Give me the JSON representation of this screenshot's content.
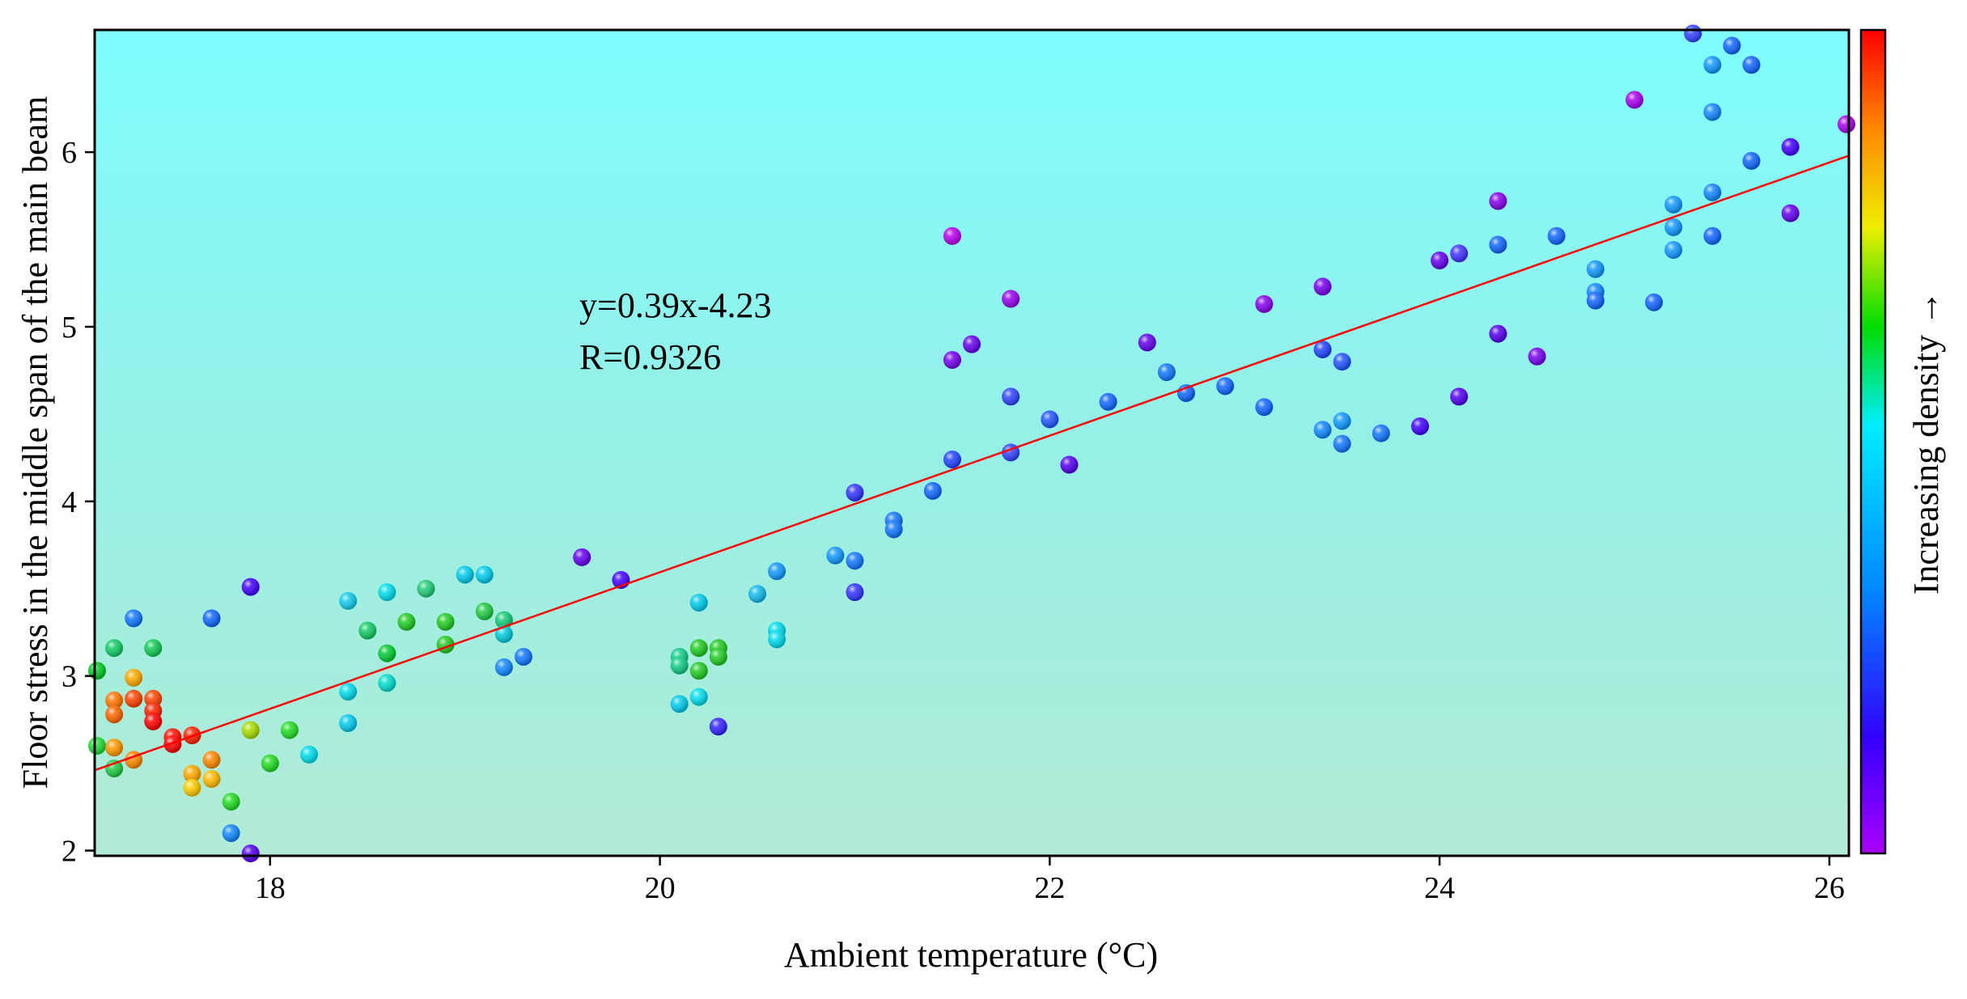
{
  "chart_data": {
    "type": "scatter",
    "title": "",
    "xlabel": "Ambient temperature (°C)",
    "ylabel": "Floor stress in the middle span of the main beam",
    "xlim": [
      17.1,
      26.1
    ],
    "ylim": [
      1.97,
      6.7
    ],
    "xticks": [
      18,
      20,
      22,
      24,
      26
    ],
    "yticks": [
      2,
      3,
      4,
      5,
      6
    ],
    "grid": false,
    "colorbar_label": "Increasing density →",
    "colorbar_colors": [
      "#aa00ff",
      "#3300ff",
      "#0088ff",
      "#00eeff",
      "#00dd00",
      "#eeee00",
      "#ff8800",
      "#ff0000"
    ],
    "fit_line": {
      "slope": 0.39,
      "intercept": -4.23,
      "color": "#ff0000",
      "x_range": [
        17.1,
        26.1
      ],
      "y_range": [
        2.46,
        5.98
      ]
    },
    "annotations": [
      "y=0.39x-4.23",
      "R=0.9326"
    ],
    "points": [
      {
        "x": 17.1,
        "y": 3.03,
        "color": "#00cc22"
      },
      {
        "x": 17.1,
        "y": 2.6,
        "color": "#22dd33"
      },
      {
        "x": 17.2,
        "y": 3.16,
        "color": "#11cc66"
      },
      {
        "x": 17.2,
        "y": 2.86,
        "color": "#ff7700"
      },
      {
        "x": 17.2,
        "y": 2.78,
        "color": "#ff6600"
      },
      {
        "x": 17.2,
        "y": 2.59,
        "color": "#ff9900"
      },
      {
        "x": 17.2,
        "y": 2.47,
        "color": "#22cc44"
      },
      {
        "x": 17.3,
        "y": 3.33,
        "color": "#1177ff"
      },
      {
        "x": 17.3,
        "y": 2.99,
        "color": "#ffaa00"
      },
      {
        "x": 17.3,
        "y": 2.87,
        "color": "#ff4400"
      },
      {
        "x": 17.3,
        "y": 2.52,
        "color": "#ff8800"
      },
      {
        "x": 17.4,
        "y": 3.16,
        "color": "#11cc55"
      },
      {
        "x": 17.4,
        "y": 2.87,
        "color": "#ff4400"
      },
      {
        "x": 17.4,
        "y": 2.8,
        "color": "#ff2200"
      },
      {
        "x": 17.4,
        "y": 2.74,
        "color": "#ff0000"
      },
      {
        "x": 17.5,
        "y": 2.65,
        "color": "#ff1100"
      },
      {
        "x": 17.5,
        "y": 2.61,
        "color": "#ff0000"
      },
      {
        "x": 17.6,
        "y": 2.66,
        "color": "#ff2200"
      },
      {
        "x": 17.6,
        "y": 2.44,
        "color": "#ffaa00"
      },
      {
        "x": 17.6,
        "y": 2.36,
        "color": "#ffcc00"
      },
      {
        "x": 17.7,
        "y": 3.33,
        "color": "#1166ff"
      },
      {
        "x": 17.7,
        "y": 2.52,
        "color": "#ff8800"
      },
      {
        "x": 17.7,
        "y": 2.41,
        "color": "#ffbb00"
      },
      {
        "x": 17.8,
        "y": 2.28,
        "color": "#22dd22"
      },
      {
        "x": 17.8,
        "y": 2.1,
        "color": "#1188ff"
      },
      {
        "x": 17.9,
        "y": 3.51,
        "color": "#4400ff"
      },
      {
        "x": 17.9,
        "y": 2.69,
        "color": "#aadd00"
      },
      {
        "x": 17.9,
        "y": 1.98,
        "color": "#5500ee"
      },
      {
        "x": 18.0,
        "y": 2.5,
        "color": "#22dd22"
      },
      {
        "x": 18.1,
        "y": 2.69,
        "color": "#22dd22"
      },
      {
        "x": 18.2,
        "y": 2.55,
        "color": "#00ddee"
      },
      {
        "x": 18.4,
        "y": 3.43,
        "color": "#11ccee"
      },
      {
        "x": 18.4,
        "y": 2.91,
        "color": "#00ddee"
      },
      {
        "x": 18.4,
        "y": 2.73,
        "color": "#00ccee"
      },
      {
        "x": 18.5,
        "y": 3.26,
        "color": "#11cc66"
      },
      {
        "x": 18.6,
        "y": 3.48,
        "color": "#00ddee"
      },
      {
        "x": 18.6,
        "y": 3.13,
        "color": "#00cc33"
      },
      {
        "x": 18.6,
        "y": 2.96,
        "color": "#00ddcc"
      },
      {
        "x": 18.7,
        "y": 3.31,
        "color": "#22cc22"
      },
      {
        "x": 18.8,
        "y": 3.5,
        "color": "#22cc77"
      },
      {
        "x": 18.9,
        "y": 3.31,
        "color": "#22cc22"
      },
      {
        "x": 18.9,
        "y": 3.18,
        "color": "#22cc22"
      },
      {
        "x": 19.0,
        "y": 3.58,
        "color": "#00ccee"
      },
      {
        "x": 19.1,
        "y": 3.58,
        "color": "#00ccee"
      },
      {
        "x": 19.1,
        "y": 3.37,
        "color": "#22cc44"
      },
      {
        "x": 19.2,
        "y": 3.32,
        "color": "#11cc77"
      },
      {
        "x": 19.2,
        "y": 3.24,
        "color": "#00ccdd"
      },
      {
        "x": 19.2,
        "y": 3.05,
        "color": "#1188ff"
      },
      {
        "x": 19.3,
        "y": 3.11,
        "color": "#1177ff"
      },
      {
        "x": 19.6,
        "y": 3.68,
        "color": "#6600ee"
      },
      {
        "x": 19.8,
        "y": 3.55,
        "color": "#4400ff"
      },
      {
        "x": 20.1,
        "y": 3.11,
        "color": "#11cc88"
      },
      {
        "x": 20.1,
        "y": 3.06,
        "color": "#11cc88"
      },
      {
        "x": 20.1,
        "y": 2.84,
        "color": "#00ccee"
      },
      {
        "x": 20.2,
        "y": 3.42,
        "color": "#00ccee"
      },
      {
        "x": 20.2,
        "y": 3.16,
        "color": "#22cc22"
      },
      {
        "x": 20.2,
        "y": 3.03,
        "color": "#22cc22"
      },
      {
        "x": 20.2,
        "y": 2.88,
        "color": "#00ddee"
      },
      {
        "x": 20.3,
        "y": 3.16,
        "color": "#22cc22"
      },
      {
        "x": 20.3,
        "y": 3.11,
        "color": "#22cc22"
      },
      {
        "x": 20.3,
        "y": 2.71,
        "color": "#3322ff"
      },
      {
        "x": 20.5,
        "y": 3.47,
        "color": "#11bbee"
      },
      {
        "x": 20.6,
        "y": 3.6,
        "color": "#1199ff"
      },
      {
        "x": 20.6,
        "y": 3.26,
        "color": "#00ddee"
      },
      {
        "x": 20.6,
        "y": 3.21,
        "color": "#00ddee"
      },
      {
        "x": 20.9,
        "y": 3.69,
        "color": "#1199ff"
      },
      {
        "x": 21.0,
        "y": 4.05,
        "color": "#3333ff"
      },
      {
        "x": 21.0,
        "y": 3.66,
        "color": "#1177ff"
      },
      {
        "x": 21.0,
        "y": 3.48,
        "color": "#3333ff"
      },
      {
        "x": 21.2,
        "y": 3.89,
        "color": "#1177ff"
      },
      {
        "x": 21.2,
        "y": 3.84,
        "color": "#1177ff"
      },
      {
        "x": 21.4,
        "y": 4.06,
        "color": "#1166ff"
      },
      {
        "x": 21.5,
        "y": 5.52,
        "color": "#bb00ee"
      },
      {
        "x": 21.5,
        "y": 4.81,
        "color": "#7700ee"
      },
      {
        "x": 21.5,
        "y": 4.24,
        "color": "#2244ff"
      },
      {
        "x": 21.6,
        "y": 4.9,
        "color": "#6600ee"
      },
      {
        "x": 21.8,
        "y": 5.16,
        "color": "#9900ee"
      },
      {
        "x": 21.8,
        "y": 4.6,
        "color": "#3344ff"
      },
      {
        "x": 21.8,
        "y": 4.28,
        "color": "#3344ff"
      },
      {
        "x": 22.0,
        "y": 4.47,
        "color": "#2255ff"
      },
      {
        "x": 22.1,
        "y": 4.21,
        "color": "#5500ee"
      },
      {
        "x": 22.3,
        "y": 4.57,
        "color": "#1166ff"
      },
      {
        "x": 22.5,
        "y": 4.91,
        "color": "#6600ee"
      },
      {
        "x": 22.6,
        "y": 4.74,
        "color": "#1177ff"
      },
      {
        "x": 22.7,
        "y": 4.62,
        "color": "#1166ff"
      },
      {
        "x": 22.9,
        "y": 4.66,
        "color": "#1166ff"
      },
      {
        "x": 23.1,
        "y": 5.13,
        "color": "#8800ee"
      },
      {
        "x": 23.1,
        "y": 4.54,
        "color": "#1166ff"
      },
      {
        "x": 23.4,
        "y": 5.23,
        "color": "#7700ee"
      },
      {
        "x": 23.4,
        "y": 4.87,
        "color": "#2244ff"
      },
      {
        "x": 23.4,
        "y": 4.41,
        "color": "#1188ff"
      },
      {
        "x": 23.5,
        "y": 4.8,
        "color": "#2255ff"
      },
      {
        "x": 23.5,
        "y": 4.46,
        "color": "#1199ff"
      },
      {
        "x": 23.5,
        "y": 4.33,
        "color": "#1177ff"
      },
      {
        "x": 23.7,
        "y": 4.39,
        "color": "#1177ff"
      },
      {
        "x": 23.9,
        "y": 4.43,
        "color": "#4400ff"
      },
      {
        "x": 24.0,
        "y": 5.38,
        "color": "#6600ee"
      },
      {
        "x": 24.1,
        "y": 5.42,
        "color": "#4433ff"
      },
      {
        "x": 24.1,
        "y": 4.6,
        "color": "#5500ee"
      },
      {
        "x": 24.3,
        "y": 5.72,
        "color": "#8800ee"
      },
      {
        "x": 24.3,
        "y": 5.47,
        "color": "#1166ff"
      },
      {
        "x": 24.3,
        "y": 4.96,
        "color": "#5500ee"
      },
      {
        "x": 24.5,
        "y": 4.83,
        "color": "#7700ee"
      },
      {
        "x": 24.6,
        "y": 5.52,
        "color": "#1166ff"
      },
      {
        "x": 24.8,
        "y": 5.33,
        "color": "#1199ff"
      },
      {
        "x": 24.8,
        "y": 5.2,
        "color": "#1188ff"
      },
      {
        "x": 24.8,
        "y": 5.15,
        "color": "#1166ff"
      },
      {
        "x": 25.0,
        "y": 6.3,
        "color": "#aa00ee"
      },
      {
        "x": 25.1,
        "y": 5.14,
        "color": "#1166ff"
      },
      {
        "x": 25.2,
        "y": 5.7,
        "color": "#1199ff"
      },
      {
        "x": 25.2,
        "y": 5.57,
        "color": "#1199ff"
      },
      {
        "x": 25.2,
        "y": 5.44,
        "color": "#1199ff"
      },
      {
        "x": 25.3,
        "y": 6.68,
        "color": "#3344ff"
      },
      {
        "x": 25.4,
        "y": 6.5,
        "color": "#1199ff"
      },
      {
        "x": 25.4,
        "y": 6.23,
        "color": "#1188ff"
      },
      {
        "x": 25.4,
        "y": 5.77,
        "color": "#1188ff"
      },
      {
        "x": 25.4,
        "y": 5.52,
        "color": "#1166ff"
      },
      {
        "x": 25.5,
        "y": 6.61,
        "color": "#1166ff"
      },
      {
        "x": 25.6,
        "y": 6.5,
        "color": "#1166ff"
      },
      {
        "x": 25.6,
        "y": 5.95,
        "color": "#1166ff"
      },
      {
        "x": 25.8,
        "y": 6.03,
        "color": "#4400ff"
      },
      {
        "x": 25.8,
        "y": 5.65,
        "color": "#6600ee"
      },
      {
        "x": 26.1,
        "y": 6.16,
        "color": "#aa00ee"
      }
    ]
  }
}
